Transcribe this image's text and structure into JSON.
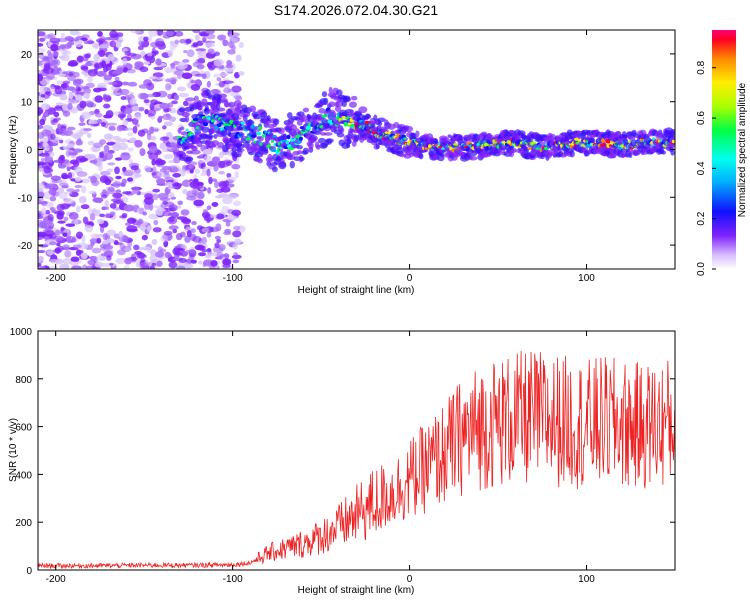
{
  "title": "S174.2026.072.04.30.G21",
  "chart_data": [
    {
      "type": "heatmap",
      "xlabel": "Height of straight line (km)",
      "ylabel": "Frequency (Hz)",
      "xlim": [
        -210,
        150
      ],
      "ylim": [
        -25,
        25
      ],
      "xticks": [
        -200,
        -100,
        0,
        100
      ],
      "yticks": [
        -20,
        -10,
        0,
        10,
        20
      ],
      "ridge": {
        "x": [
          -125,
          -115,
          -105,
          -95,
          -85,
          -75,
          -65,
          -55,
          -45,
          -35,
          -25,
          -15,
          -5,
          5,
          15,
          25,
          35,
          45,
          55,
          65,
          75,
          85,
          95,
          105,
          115,
          125,
          135,
          150
        ],
        "frequency": [
          3,
          7,
          5,
          4,
          3,
          1,
          2,
          5,
          7,
          6,
          5,
          3,
          2,
          1,
          0.5,
          0.5,
          0.5,
          1,
          1.5,
          1,
          0.5,
          1,
          1.5,
          1.5,
          1,
          1,
          1.5,
          1.5
        ]
      },
      "colorbar": {
        "label": "Normalized spectral amplitude",
        "min": 0.0,
        "max": 0.95,
        "ticks": [
          0.0,
          0.2,
          0.4,
          0.6,
          0.8
        ],
        "tick_labels": [
          "0.0",
          "0.2",
          "0.4",
          "0.6",
          "0.8"
        ]
      }
    },
    {
      "type": "line",
      "xlabel": "Height of straight line (km)",
      "ylabel": "SNR (10 * v/v)",
      "xlim": [
        -210,
        150
      ],
      "ylim": [
        0,
        1000
      ],
      "xticks": [
        -200,
        -100,
        0,
        100
      ],
      "yticks": [
        0,
        200,
        400,
        600,
        800,
        1000
      ],
      "line_color": "#ee2222",
      "series": [
        {
          "name": "SNR",
          "x": [
            -210,
            -180,
            -150,
            -120,
            -100,
            -90,
            -80,
            -70,
            -60,
            -50,
            -40,
            -30,
            -20,
            -10,
            0,
            10,
            20,
            30,
            40,
            50,
            60,
            70,
            80,
            90,
            100,
            110,
            120,
            130,
            140,
            150
          ],
          "values": [
            18,
            18,
            20,
            20,
            22,
            30,
            70,
            90,
            110,
            140,
            180,
            230,
            280,
            320,
            380,
            430,
            490,
            560,
            600,
            620,
            630,
            640,
            630,
            620,
            610,
            620,
            610,
            600,
            610,
            620
          ]
        }
      ]
    }
  ]
}
